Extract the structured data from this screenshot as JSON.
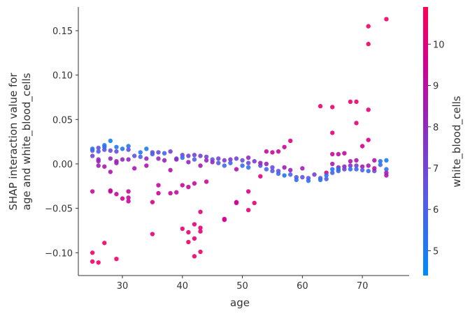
{
  "chart_data": {
    "type": "scatter",
    "title": "",
    "xlabel": "age",
    "ylabel_lines": [
      "SHAP interaction value for",
      "age and white_blood_cells"
    ],
    "colorbar_label": "white_blood_cells",
    "xlim": [
      22.65,
      77.8
    ],
    "ylim": [
      -0.1257,
      0.1767
    ],
    "xticks": [
      30,
      40,
      50,
      60,
      70
    ],
    "xtick_labels": [
      "30",
      "40",
      "50",
      "60",
      "70"
    ],
    "yticks": [
      -0.1,
      -0.05,
      0,
      0.05,
      0.1,
      0.15
    ],
    "ytick_labels": [
      "−0.10",
      "−0.05",
      "0.00",
      "0.05",
      "0.10",
      "0.15"
    ],
    "color_range": [
      4.4,
      10.9
    ],
    "cticks": [
      5,
      6,
      7,
      8,
      9,
      10
    ],
    "ctick_labels": [
      "5",
      "6",
      "7",
      "8",
      "9",
      "10"
    ],
    "colors": [
      "#008bfb",
      "#5a59e8",
      "#9b22b8",
      "#d5008f",
      "#ff0052"
    ],
    "points": [
      [
        25,
        -0.1,
        10.5
      ],
      [
        25,
        -0.11,
        10.5
      ],
      [
        26,
        -0.111,
        10.5
      ],
      [
        27,
        -0.089,
        10.4
      ],
      [
        29,
        -0.107,
        10.5
      ],
      [
        25,
        -0.031,
        9.3
      ],
      [
        28,
        -0.03,
        9.3
      ],
      [
        28,
        -0.031,
        9.3
      ],
      [
        29,
        -0.034,
        9.2
      ],
      [
        30,
        -0.039,
        9.4
      ],
      [
        31,
        -0.042,
        9.3
      ],
      [
        31,
        -0.038,
        9.3
      ],
      [
        31,
        -0.031,
        9.3
      ],
      [
        35,
        -0.043,
        9.8
      ],
      [
        35,
        -0.079,
        10.1
      ],
      [
        36,
        -0.033,
        9.4
      ],
      [
        36,
        -0.024,
        9.3
      ],
      [
        38,
        -0.033,
        9.3
      ],
      [
        39,
        -0.032,
        9.3
      ],
      [
        40,
        -0.024,
        9.3
      ],
      [
        40,
        -0.073,
        10.2
      ],
      [
        41,
        -0.077,
        10.2
      ],
      [
        41,
        -0.088,
        10.4
      ],
      [
        41,
        -0.026,
        9.3
      ],
      [
        42,
        -0.104,
        10.3
      ],
      [
        42,
        -0.068,
        10.1
      ],
      [
        42,
        -0.084,
        10.2
      ],
      [
        42,
        -0.022,
        9.3
      ],
      [
        43,
        -0.072,
        10.2
      ],
      [
        43,
        -0.076,
        10.2
      ],
      [
        43,
        -0.054,
        10
      ],
      [
        43,
        -0.099,
        10.3
      ],
      [
        44,
        -0.02,
        9.3
      ],
      [
        47,
        -0.062,
        9.6
      ],
      [
        47,
        -0.063,
        9.6
      ],
      [
        49,
        -0.043,
        9.5
      ],
      [
        49,
        -0.044,
        9.5
      ],
      [
        51,
        -0.031,
        9.8
      ],
      [
        51,
        -0.052,
        10.2
      ],
      [
        52,
        -0.044,
        10.2
      ],
      [
        53,
        -0.014,
        10.2
      ],
      [
        54,
        0.014,
        9.2
      ],
      [
        55,
        0.013,
        9.2
      ],
      [
        56,
        0.014,
        9.2
      ],
      [
        57,
        0.019,
        9.4
      ],
      [
        58,
        0.026,
        9.8
      ],
      [
        63,
        0.065,
        10.3
      ],
      [
        65,
        0.064,
        10.3
      ],
      [
        65,
        0.035,
        10
      ],
      [
        68,
        0.07,
        10.4
      ],
      [
        69,
        0.07,
        10.4
      ],
      [
        69,
        0.046,
        10.1
      ],
      [
        71,
        0.155,
        10.5
      ],
      [
        71,
        0.135,
        10.4
      ],
      [
        71,
        0.061,
        10.2
      ],
      [
        70,
        0.02,
        9.6
      ],
      [
        71,
        0.027,
        9.8
      ],
      [
        74,
        0.163,
        10.5
      ],
      [
        65,
        0.011,
        9.2
      ],
      [
        66,
        0.011,
        9.2
      ],
      [
        67,
        0.012,
        9.3
      ],
      [
        64,
        -0.01,
        10
      ],
      [
        25,
        0.017,
        5.2
      ],
      [
        25,
        0.015,
        6
      ],
      [
        25,
        0.009,
        7
      ],
      [
        26,
        0.018,
        6.6
      ],
      [
        26,
        0.014,
        6.2
      ],
      [
        26,
        0.005,
        8
      ],
      [
        26,
        0.003,
        8.2
      ],
      [
        26,
        -0.002,
        8.4
      ],
      [
        27,
        0.021,
        5
      ],
      [
        27,
        0.016,
        6.6
      ],
      [
        27,
        0.019,
        5.5
      ],
      [
        27,
        -0.003,
        8.6
      ],
      [
        28,
        0.026,
        4.8
      ],
      [
        28,
        0.015,
        6.6
      ],
      [
        28,
        0.006,
        8
      ],
      [
        28,
        -0.009,
        8.8
      ],
      [
        29,
        0.019,
        5.2
      ],
      [
        29,
        0.014,
        6.8
      ],
      [
        29,
        0.001,
        8.3
      ],
      [
        29,
        0.003,
        8.3
      ],
      [
        30,
        0.017,
        5.2
      ],
      [
        30,
        0.005,
        8
      ],
      [
        31,
        0.02,
        5.3
      ],
      [
        31,
        0.016,
        6.6
      ],
      [
        31,
        0.005,
        8.1
      ],
      [
        32,
        0.009,
        6.6
      ],
      [
        32,
        -0.005,
        8.6
      ],
      [
        33,
        0.013,
        5.3
      ],
      [
        33,
        0.008,
        6
      ],
      [
        34,
        0.017,
        5
      ],
      [
        34,
        0.006,
        8
      ],
      [
        34,
        -0.002,
        8.8
      ],
      [
        35,
        0.013,
        6.8
      ],
      [
        35,
        0.011,
        6
      ],
      [
        36,
        0.013,
        6.8
      ],
      [
        36,
        0.006,
        8
      ],
      [
        37,
        0.012,
        5.8
      ],
      [
        37,
        0.004,
        8.2
      ],
      [
        38,
        0.014,
        7.2
      ],
      [
        38,
        -0.007,
        8.8
      ],
      [
        39,
        0.006,
        6.6
      ],
      [
        39,
        0.005,
        8
      ],
      [
        40,
        0.01,
        7
      ],
      [
        40,
        0.007,
        5.6
      ],
      [
        41,
        0.009,
        7.2
      ],
      [
        41,
        0.002,
        8.2
      ],
      [
        42,
        0.01,
        7
      ],
      [
        42,
        0.005,
        6.2
      ],
      [
        43,
        0.009,
        7.2
      ],
      [
        43,
        -0.002,
        8.6
      ],
      [
        44,
        0.008,
        7
      ],
      [
        44,
        0.004,
        8
      ],
      [
        45,
        0.005,
        6.5
      ],
      [
        45,
        0.002,
        8
      ],
      [
        46,
        0.006,
        7
      ],
      [
        46,
        0.001,
        6.2
      ],
      [
        47,
        0.004,
        7.4
      ],
      [
        47,
        -0.002,
        5.8
      ],
      [
        48,
        0.005,
        7.4
      ],
      [
        48,
        0.001,
        6
      ],
      [
        49,
        0.006,
        7
      ],
      [
        49,
        -0.006,
        8.8
      ],
      [
        50,
        0.004,
        6.8
      ],
      [
        50,
        -0.002,
        5.6
      ],
      [
        51,
        0.007,
        8
      ],
      [
        51,
        0.001,
        7
      ],
      [
        51,
        -0.004,
        5.4
      ],
      [
        52,
        0.003,
        7.4
      ],
      [
        53,
        -0.002,
        6.5
      ],
      [
        53,
        0.001,
        8.2
      ],
      [
        54,
        0.0,
        8.2
      ],
      [
        54,
        -0.006,
        5.8
      ],
      [
        55,
        -0.008,
        6.2
      ],
      [
        55,
        -0.004,
        6.8
      ],
      [
        56,
        -0.011,
        5.5
      ],
      [
        56,
        -0.008,
        6.5
      ],
      [
        57,
        -0.004,
        8.4
      ],
      [
        57,
        -0.013,
        5.2
      ],
      [
        58,
        -0.007,
        8.2
      ],
      [
        58,
        -0.012,
        6
      ],
      [
        59,
        -0.015,
        6.4
      ],
      [
        59,
        -0.018,
        5.4
      ],
      [
        60,
        -0.005,
        8.4
      ],
      [
        60,
        -0.015,
        6.5
      ],
      [
        61,
        -0.019,
        5.2
      ],
      [
        61,
        -0.016,
        6.5
      ],
      [
        62,
        -0.012,
        7.2
      ],
      [
        63,
        -0.016,
        6.2
      ],
      [
        63,
        -0.018,
        5.4
      ],
      [
        64,
        -0.017,
        6.3
      ],
      [
        64,
        -0.013,
        5.2
      ],
      [
        65,
        0.0,
        8.6
      ],
      [
        65,
        -0.01,
        6
      ],
      [
        65,
        -0.006,
        5.4
      ],
      [
        66,
        -0.004,
        8.2
      ],
      [
        66,
        -0.008,
        6.2
      ],
      [
        66,
        -0.006,
        5.2
      ],
      [
        67,
        -0.003,
        8
      ],
      [
        67,
        -0.006,
        7
      ],
      [
        68,
        0.003,
        8.6
      ],
      [
        68,
        -0.002,
        7.8
      ],
      [
        68,
        -0.006,
        5.4
      ],
      [
        69,
        0.004,
        8.8
      ],
      [
        69,
        -0.002,
        7.2
      ],
      [
        69,
        -0.006,
        5.8
      ],
      [
        70,
        -0.003,
        8.6
      ],
      [
        70,
        -0.007,
        6.2
      ],
      [
        71,
        -0.002,
        8.6
      ],
      [
        71,
        -0.008,
        5.6
      ],
      [
        72,
        0.004,
        8.8
      ],
      [
        72,
        -0.008,
        6.8
      ],
      [
        72,
        -0.005,
        9
      ],
      [
        73,
        0.003,
        5.2
      ],
      [
        73,
        -0.001,
        5.6
      ],
      [
        74,
        0.004,
        5
      ],
      [
        74,
        -0.006,
        5.6
      ],
      [
        74,
        -0.01,
        8.4
      ],
      [
        74,
        -0.013,
        8.6
      ]
    ]
  }
}
